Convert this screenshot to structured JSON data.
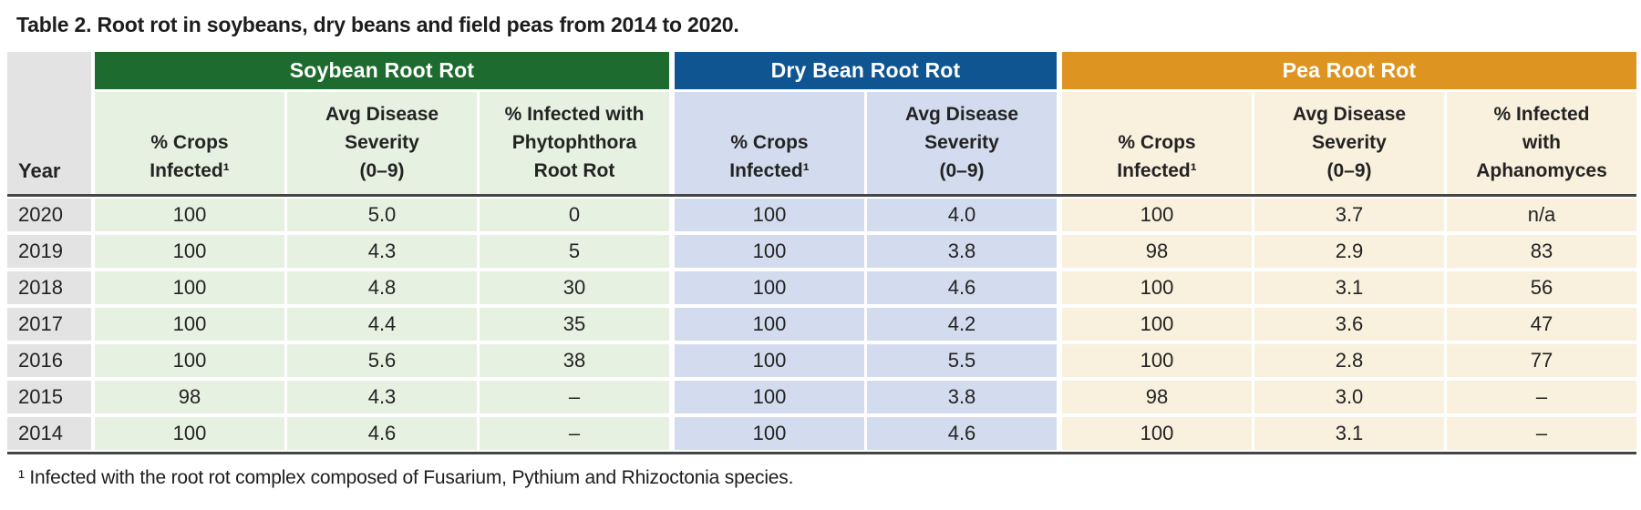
{
  "title": "Table 2. Root rot in soybeans, dry beans and field peas from 2014 to 2020.",
  "year_header": "Year",
  "groups": [
    {
      "label": "Soybean Root Rot"
    },
    {
      "label": "Dry Bean Root Rot"
    },
    {
      "label": "Pea Root Rot"
    }
  ],
  "columns": [
    "% Crops\nInfected¹",
    "Avg Disease\nSeverity\n(0–9)",
    "% Infected with\nPhytophthora\nRoot Rot",
    "% Crops\nInfected¹",
    "Avg Disease\nSeverity\n(0–9)",
    "% Crops\nInfected¹",
    "Avg Disease\nSeverity\n(0–9)",
    "% Infected\nwith\nAphanomyces"
  ],
  "rows": [
    {
      "year": "2020",
      "cells": [
        "100",
        "5.0",
        "0",
        "100",
        "4.0",
        "100",
        "3.7",
        "n/a"
      ]
    },
    {
      "year": "2019",
      "cells": [
        "100",
        "4.3",
        "5",
        "100",
        "3.8",
        "98",
        "2.9",
        "83"
      ]
    },
    {
      "year": "2018",
      "cells": [
        "100",
        "4.8",
        "30",
        "100",
        "4.6",
        "100",
        "3.1",
        "56"
      ]
    },
    {
      "year": "2017",
      "cells": [
        "100",
        "4.4",
        "35",
        "100",
        "4.2",
        "100",
        "3.6",
        "47"
      ]
    },
    {
      "year": "2016",
      "cells": [
        "100",
        "5.6",
        "38",
        "100",
        "5.5",
        "100",
        "2.8",
        "77"
      ]
    },
    {
      "year": "2015",
      "cells": [
        "98",
        "4.3",
        "–",
        "100",
        "3.8",
        "98",
        "3.0",
        "–"
      ]
    },
    {
      "year": "2014",
      "cells": [
        "100",
        "4.6",
        "–",
        "100",
        "4.6",
        "100",
        "3.1",
        "–"
      ]
    }
  ],
  "footnote": "¹ Infected with the root rot complex composed of Fusarium, Pythium and Rhizoctonia species.",
  "colors": {
    "soybean_header": "#1e6b2f",
    "drybean_header": "#0f5591",
    "pea_header": "#de9420",
    "soybean_cell": "#e7f1e2",
    "drybean_cell": "#d3dcee",
    "pea_cell": "#f9f0dd",
    "year_cell": "#e3e3e3",
    "rule": "#454545",
    "header_text": "#ffffff",
    "body_text": "#232323"
  },
  "chart_data": {
    "type": "table",
    "title": "Table 2. Root rot in soybeans, dry beans and field peas from 2014 to 2020.",
    "column_groups": [
      "Soybean Root Rot",
      "Dry Bean Root Rot",
      "Pea Root Rot"
    ],
    "columns": [
      "Year",
      "Soybean % Crops Infected",
      "Soybean Avg Disease Severity (0-9)",
      "Soybean % Infected with Phytophthora Root Rot",
      "Dry Bean % Crops Infected",
      "Dry Bean Avg Disease Severity (0-9)",
      "Pea % Crops Infected",
      "Pea Avg Disease Severity (0-9)",
      "Pea % Infected with Aphanomyces"
    ],
    "rows": [
      [
        "2020",
        100,
        5.0,
        0,
        100,
        4.0,
        100,
        3.7,
        "n/a"
      ],
      [
        "2019",
        100,
        4.3,
        5,
        100,
        3.8,
        98,
        2.9,
        83
      ],
      [
        "2018",
        100,
        4.8,
        30,
        100,
        4.6,
        100,
        3.1,
        56
      ],
      [
        "2017",
        100,
        4.4,
        35,
        100,
        4.2,
        100,
        3.6,
        47
      ],
      [
        "2016",
        100,
        5.6,
        38,
        100,
        5.5,
        100,
        2.8,
        77
      ],
      [
        "2015",
        98,
        4.3,
        null,
        100,
        3.8,
        98,
        3.0,
        null
      ],
      [
        "2014",
        100,
        4.6,
        null,
        100,
        4.6,
        100,
        3.1,
        null
      ]
    ]
  }
}
